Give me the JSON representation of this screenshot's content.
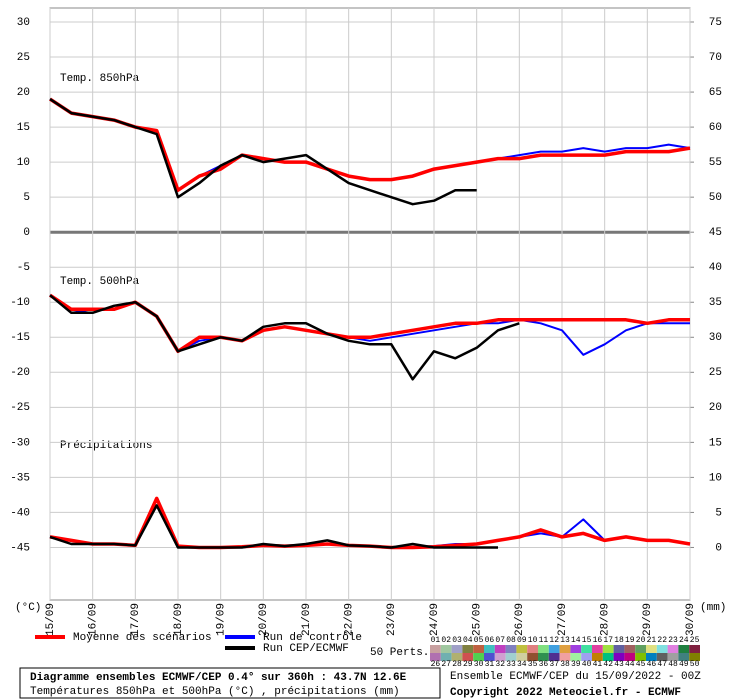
{
  "chart_data": {
    "type": "line",
    "x": [
      0,
      12,
      24,
      36,
      48,
      60,
      72,
      84,
      96,
      108,
      120,
      132,
      144,
      156,
      168,
      180,
      192,
      204,
      216,
      228,
      240,
      252,
      264,
      276,
      288,
      300,
      312,
      324,
      336,
      348,
      360
    ],
    "xlim": [
      0,
      360
    ],
    "xticks": [
      {
        "value": 0,
        "label": "15/09"
      },
      {
        "value": 24,
        "label": "16/09"
      },
      {
        "value": 48,
        "label": "17/09"
      },
      {
        "value": 72,
        "label": "18/09"
      },
      {
        "value": 96,
        "label": "19/09"
      },
      {
        "value": 120,
        "label": "20/09"
      },
      {
        "value": 144,
        "label": "21/09"
      },
      {
        "value": 168,
        "label": "22/09"
      },
      {
        "value": 192,
        "label": "23/09"
      },
      {
        "value": 216,
        "label": "24/09"
      },
      {
        "value": 240,
        "label": "25/09"
      },
      {
        "value": 264,
        "label": "26/09"
      },
      {
        "value": 288,
        "label": "27/09"
      },
      {
        "value": 312,
        "label": "28/09"
      },
      {
        "value": 336,
        "label": "29/09"
      },
      {
        "value": 360,
        "label": "30/09"
      }
    ],
    "ylim": [
      -52.5,
      32
    ],
    "yticks": [
      30,
      25,
      20,
      15,
      10,
      5,
      0,
      -5,
      -10,
      -15,
      -20,
      -25,
      -30,
      -35,
      -40,
      -45
    ],
    "y2lim": [
      -7.5,
      77
    ],
    "y2ticks": [
      75,
      70,
      65,
      60,
      55,
      50,
      45,
      40,
      35,
      30,
      25,
      20,
      15,
      10,
      5,
      0
    ],
    "grid": true,
    "y_label": "(°C)",
    "y2_label": "(mm)",
    "panel_labels": [
      "Temp. 850hPa",
      "Temp. 500hPa",
      "Précipitations"
    ],
    "legend": [
      {
        "name": "Moyenne des scénarios",
        "color": "#ff0000"
      },
      {
        "name": "Run de contrôle",
        "color": "#0000ff"
      },
      {
        "name": "Run CEP/ECMWF",
        "color": "#000000"
      }
    ],
    "perts_label": "50 Perts.",
    "perts": [
      {
        "label": "01",
        "color": "#c8a0a0"
      },
      {
        "label": "02",
        "color": "#a0c8a0"
      },
      {
        "label": "03",
        "color": "#a0a0c8"
      },
      {
        "label": "04",
        "color": "#808040"
      },
      {
        "label": "05",
        "color": "#c06040"
      },
      {
        "label": "06",
        "color": "#40c0c0"
      },
      {
        "label": "07",
        "color": "#c040c0"
      },
      {
        "label": "08",
        "color": "#8080c0"
      },
      {
        "label": "09",
        "color": "#c0c040"
      },
      {
        "label": "10",
        "color": "#e08080"
      },
      {
        "label": "11",
        "color": "#80e080"
      },
      {
        "label": "12",
        "color": "#40a0e0"
      },
      {
        "label": "13",
        "color": "#e0a040"
      },
      {
        "label": "14",
        "color": "#a040e0"
      },
      {
        "label": "15",
        "color": "#40e0a0"
      },
      {
        "label": "16",
        "color": "#e040a0"
      },
      {
        "label": "17",
        "color": "#a0e040"
      },
      {
        "label": "18",
        "color": "#6060a0"
      },
      {
        "label": "19",
        "color": "#a06060"
      },
      {
        "label": "20",
        "color": "#60a060"
      },
      {
        "label": "21",
        "color": "#e0e080"
      },
      {
        "label": "22",
        "color": "#80e0e0"
      },
      {
        "label": "23",
        "color": "#e080e0"
      },
      {
        "label": "24",
        "color": "#208040"
      },
      {
        "label": "25",
        "color": "#802040"
      },
      {
        "label": "26",
        "color": "#b070b0"
      },
      {
        "label": "27",
        "color": "#70b0b0"
      },
      {
        "label": "28",
        "color": "#b0b070"
      },
      {
        "label": "29",
        "color": "#d05050"
      },
      {
        "label": "30",
        "color": "#50d050"
      },
      {
        "label": "31",
        "color": "#5050d0"
      },
      {
        "label": "32",
        "color": "#d0a0d0"
      },
      {
        "label": "33",
        "color": "#a0d0d0"
      },
      {
        "label": "34",
        "color": "#d0d0a0"
      },
      {
        "label": "35",
        "color": "#905030"
      },
      {
        "label": "36",
        "color": "#309050"
      },
      {
        "label": "37",
        "color": "#503090"
      },
      {
        "label": "38",
        "color": "#f0a0a0"
      },
      {
        "label": "39",
        "color": "#a0f0a0"
      },
      {
        "label": "40",
        "color": "#a0a0f0"
      },
      {
        "label": "41",
        "color": "#c08000"
      },
      {
        "label": "42",
        "color": "#00c080"
      },
      {
        "label": "43",
        "color": "#8000c0"
      },
      {
        "label": "44",
        "color": "#c00080"
      },
      {
        "label": "45",
        "color": "#80c000"
      },
      {
        "label": "46",
        "color": "#0080c0"
      },
      {
        "label": "47",
        "color": "#606060"
      },
      {
        "label": "48",
        "color": "#a0a0a0"
      },
      {
        "label": "49",
        "color": "#408080"
      },
      {
        "label": "50",
        "color": "#808000"
      }
    ],
    "series": [
      {
        "color": "#0000ff",
        "width": 2,
        "values": [
          19,
          17,
          16.5,
          16,
          15,
          14.5,
          6,
          8,
          9.5,
          11,
          10.5,
          10,
          10,
          9,
          8,
          7.5,
          7.5,
          8,
          9,
          9.5,
          10,
          10.5,
          11,
          11.5,
          11.5,
          12,
          11.5,
          12,
          12,
          12.5,
          12
        ]
      },
      {
        "color": "#ff0000",
        "width": 3.5,
        "values": [
          19,
          17,
          16.5,
          16,
          15,
          14.5,
          6,
          8,
          9,
          11,
          10.5,
          10,
          10,
          9,
          8,
          7.5,
          7.5,
          8,
          9,
          9.5,
          10,
          10.5,
          10.5,
          11,
          11,
          11,
          11,
          11.5,
          11.5,
          11.5,
          12
        ]
      },
      {
        "color": "#000000",
        "width": 2.5,
        "values": [
          19,
          17,
          16.5,
          16,
          15,
          14,
          5,
          7,
          9.5,
          11,
          10,
          10.5,
          11,
          9,
          7,
          6,
          5,
          4,
          4.5,
          6,
          6,
          null,
          null,
          null,
          null,
          null,
          null,
          null,
          null,
          null,
          null
        ]
      },
      {
        "color": "#0000ff",
        "width": 2,
        "values": [
          -9,
          -11.5,
          -11,
          -11,
          -10,
          -12,
          -17,
          -15.5,
          -15,
          -15.5,
          -14,
          -13.5,
          -14,
          -14.5,
          -15,
          -15.5,
          -15,
          -14.5,
          -14,
          -13.5,
          -13,
          -13,
          -12.5,
          -13,
          -14,
          -17.5,
          -16,
          -14,
          -13,
          -13,
          -13
        ]
      },
      {
        "color": "#ff0000",
        "width": 3.5,
        "values": [
          -9,
          -11,
          -11,
          -11,
          -10,
          -12,
          -17,
          -15,
          -15,
          -15.5,
          -14,
          -13.5,
          -14,
          -14.5,
          -15,
          -15,
          -14.5,
          -14,
          -13.5,
          -13,
          -13,
          -12.5,
          -12.5,
          -12.5,
          -12.5,
          -12.5,
          -12.5,
          -12.5,
          -13,
          -12.5,
          -12.5
        ]
      },
      {
        "color": "#000000",
        "width": 2.5,
        "values": [
          -9,
          -11.5,
          -11.5,
          -10.5,
          -10,
          -12,
          -17,
          -16,
          -15,
          -15.5,
          -13.5,
          -13,
          -13,
          -14.5,
          -15.5,
          -16,
          -16,
          -21,
          -17,
          -18,
          -16.5,
          -14,
          -13,
          null,
          null,
          null,
          null,
          null,
          null,
          null,
          null
        ]
      },
      {
        "color": "#0000ff",
        "width": 2,
        "axis": "y2",
        "values": [
          1.5,
          1,
          0.5,
          0.5,
          0.3,
          6,
          0.2,
          0,
          0,
          0.1,
          0.3,
          0.2,
          0.3,
          0.5,
          0.3,
          0.2,
          0,
          0,
          0.2,
          0.5,
          0.5,
          1,
          1.5,
          2,
          1.5,
          4,
          1,
          1.5,
          1,
          1,
          0.5
        ]
      },
      {
        "color": "#ff0000",
        "width": 3.5,
        "axis": "y2",
        "values": [
          1.5,
          1,
          0.5,
          0.5,
          0.3,
          7,
          0.2,
          0,
          0,
          0.1,
          0.3,
          0.2,
          0.3,
          0.5,
          0.3,
          0.2,
          0,
          0,
          0.1,
          0.3,
          0.5,
          1,
          1.5,
          2.5,
          1.5,
          2,
          1,
          1.5,
          1,
          1,
          0.5
        ]
      },
      {
        "color": "#000000",
        "width": 2.5,
        "axis": "y2",
        "values": [
          1.5,
          0.5,
          0.5,
          0.5,
          0.3,
          6,
          0,
          0,
          0,
          0,
          0.5,
          0.2,
          0.5,
          1,
          0.3,
          0.2,
          0,
          0.5,
          0,
          0,
          0,
          0,
          null,
          null,
          null,
          null,
          null,
          null,
          null,
          null,
          null
        ]
      }
    ]
  },
  "footer": {
    "lines": [
      "Diagramme ensembles ECMWF/CEP 0.4° sur 360h : 43.7N 12.6E",
      "Températures 850hPa et 500hPa (°C) , précipitations (mm)"
    ],
    "run": "Ensemble ECMWF/CEP du 15/09/2022 - 00Z",
    "copyright": "Copyright 2022 Meteociel.fr - ECMWF"
  }
}
